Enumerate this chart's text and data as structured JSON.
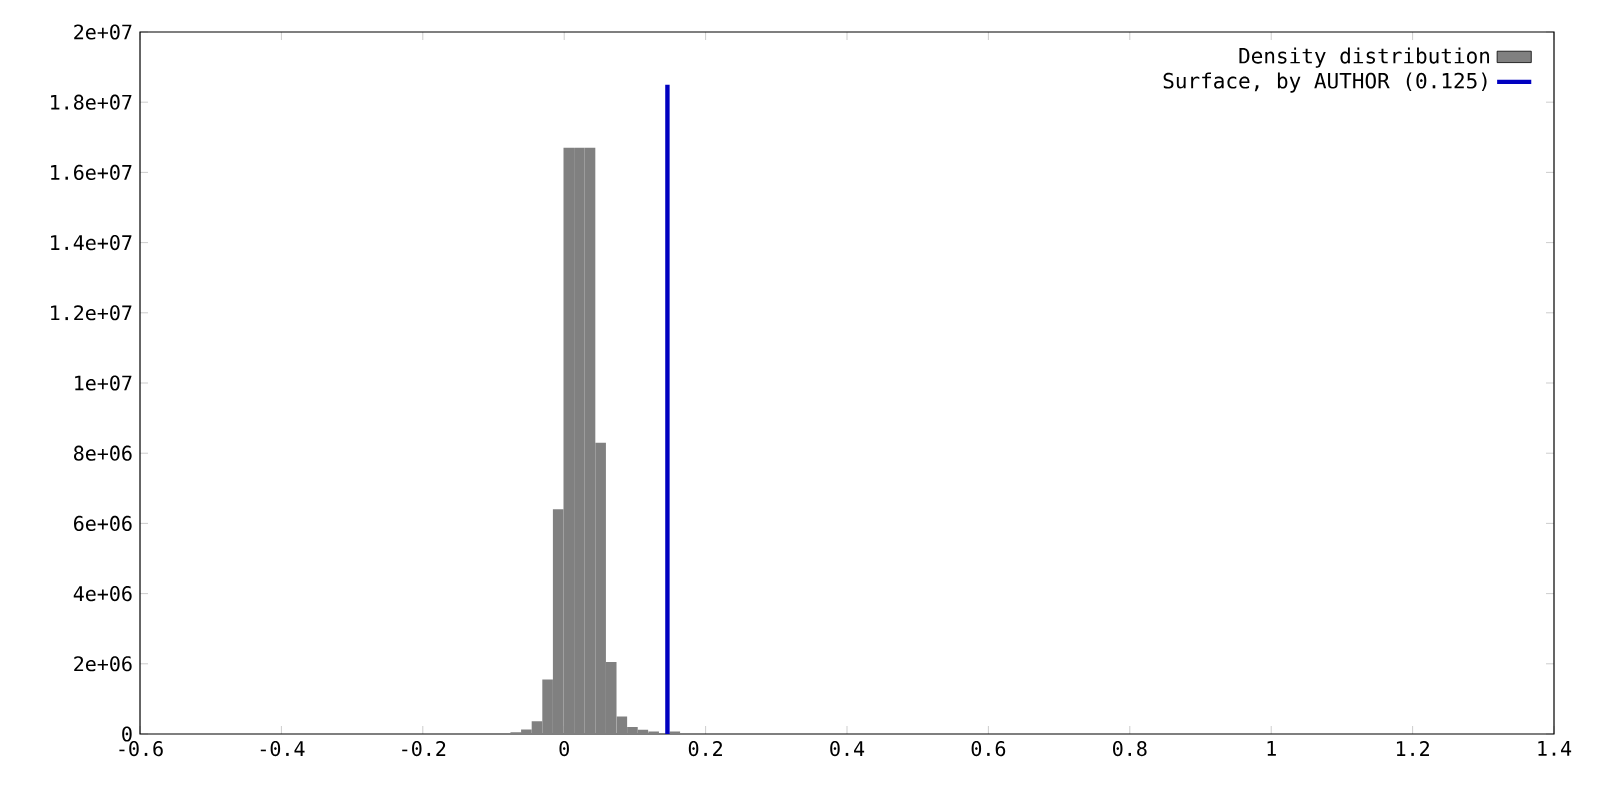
{
  "chart_data": {
    "type": "histogram",
    "xlim": [
      -0.6,
      1.4
    ],
    "ylim": [
      0,
      20000000
    ],
    "xticks": [
      -0.6,
      -0.4,
      -0.2,
      0,
      0.2,
      0.4,
      0.6,
      0.8,
      1,
      1.2,
      1.4
    ],
    "yticks": [
      0,
      {
        "value": 2000000,
        "label": "2e+06"
      },
      {
        "value": 4000000,
        "label": "4e+06"
      },
      {
        "value": 6000000,
        "label": "6e+06"
      },
      {
        "value": 8000000,
        "label": "8e+06"
      },
      {
        "value": 10000000,
        "label": "1e+07"
      },
      {
        "value": 12000000,
        "label": "1.2e+07"
      },
      {
        "value": 14000000,
        "label": "1.4e+07"
      },
      {
        "value": 16000000,
        "label": "1.6e+07"
      },
      {
        "value": 18000000,
        "label": "1.8e+07"
      },
      {
        "value": 20000000,
        "label": "2e+07"
      }
    ],
    "legend": "top right",
    "grid": false,
    "series": [
      {
        "name": "Density distribution",
        "color": "#808080",
        "bins": [
          -0.076,
          -0.061,
          -0.046,
          -0.031,
          -0.016,
          -0.001,
          0.014,
          0.029,
          0.044,
          0.059,
          0.074,
          0.089,
          0.104,
          0.119,
          0.134,
          0.149,
          0.164
        ],
        "values": [
          50000,
          130000,
          360000,
          1550000,
          6400000,
          16700000,
          16700000,
          16700000,
          8300000,
          2050000,
          500000,
          200000,
          120000,
          70000,
          null,
          70000
        ]
      },
      {
        "name": "Surface, by AUTHOR (0.125)",
        "type": "line",
        "color": "#0000c0",
        "x": [
          0.146,
          0.146
        ],
        "values": [
          0,
          18500000
        ]
      }
    ]
  }
}
